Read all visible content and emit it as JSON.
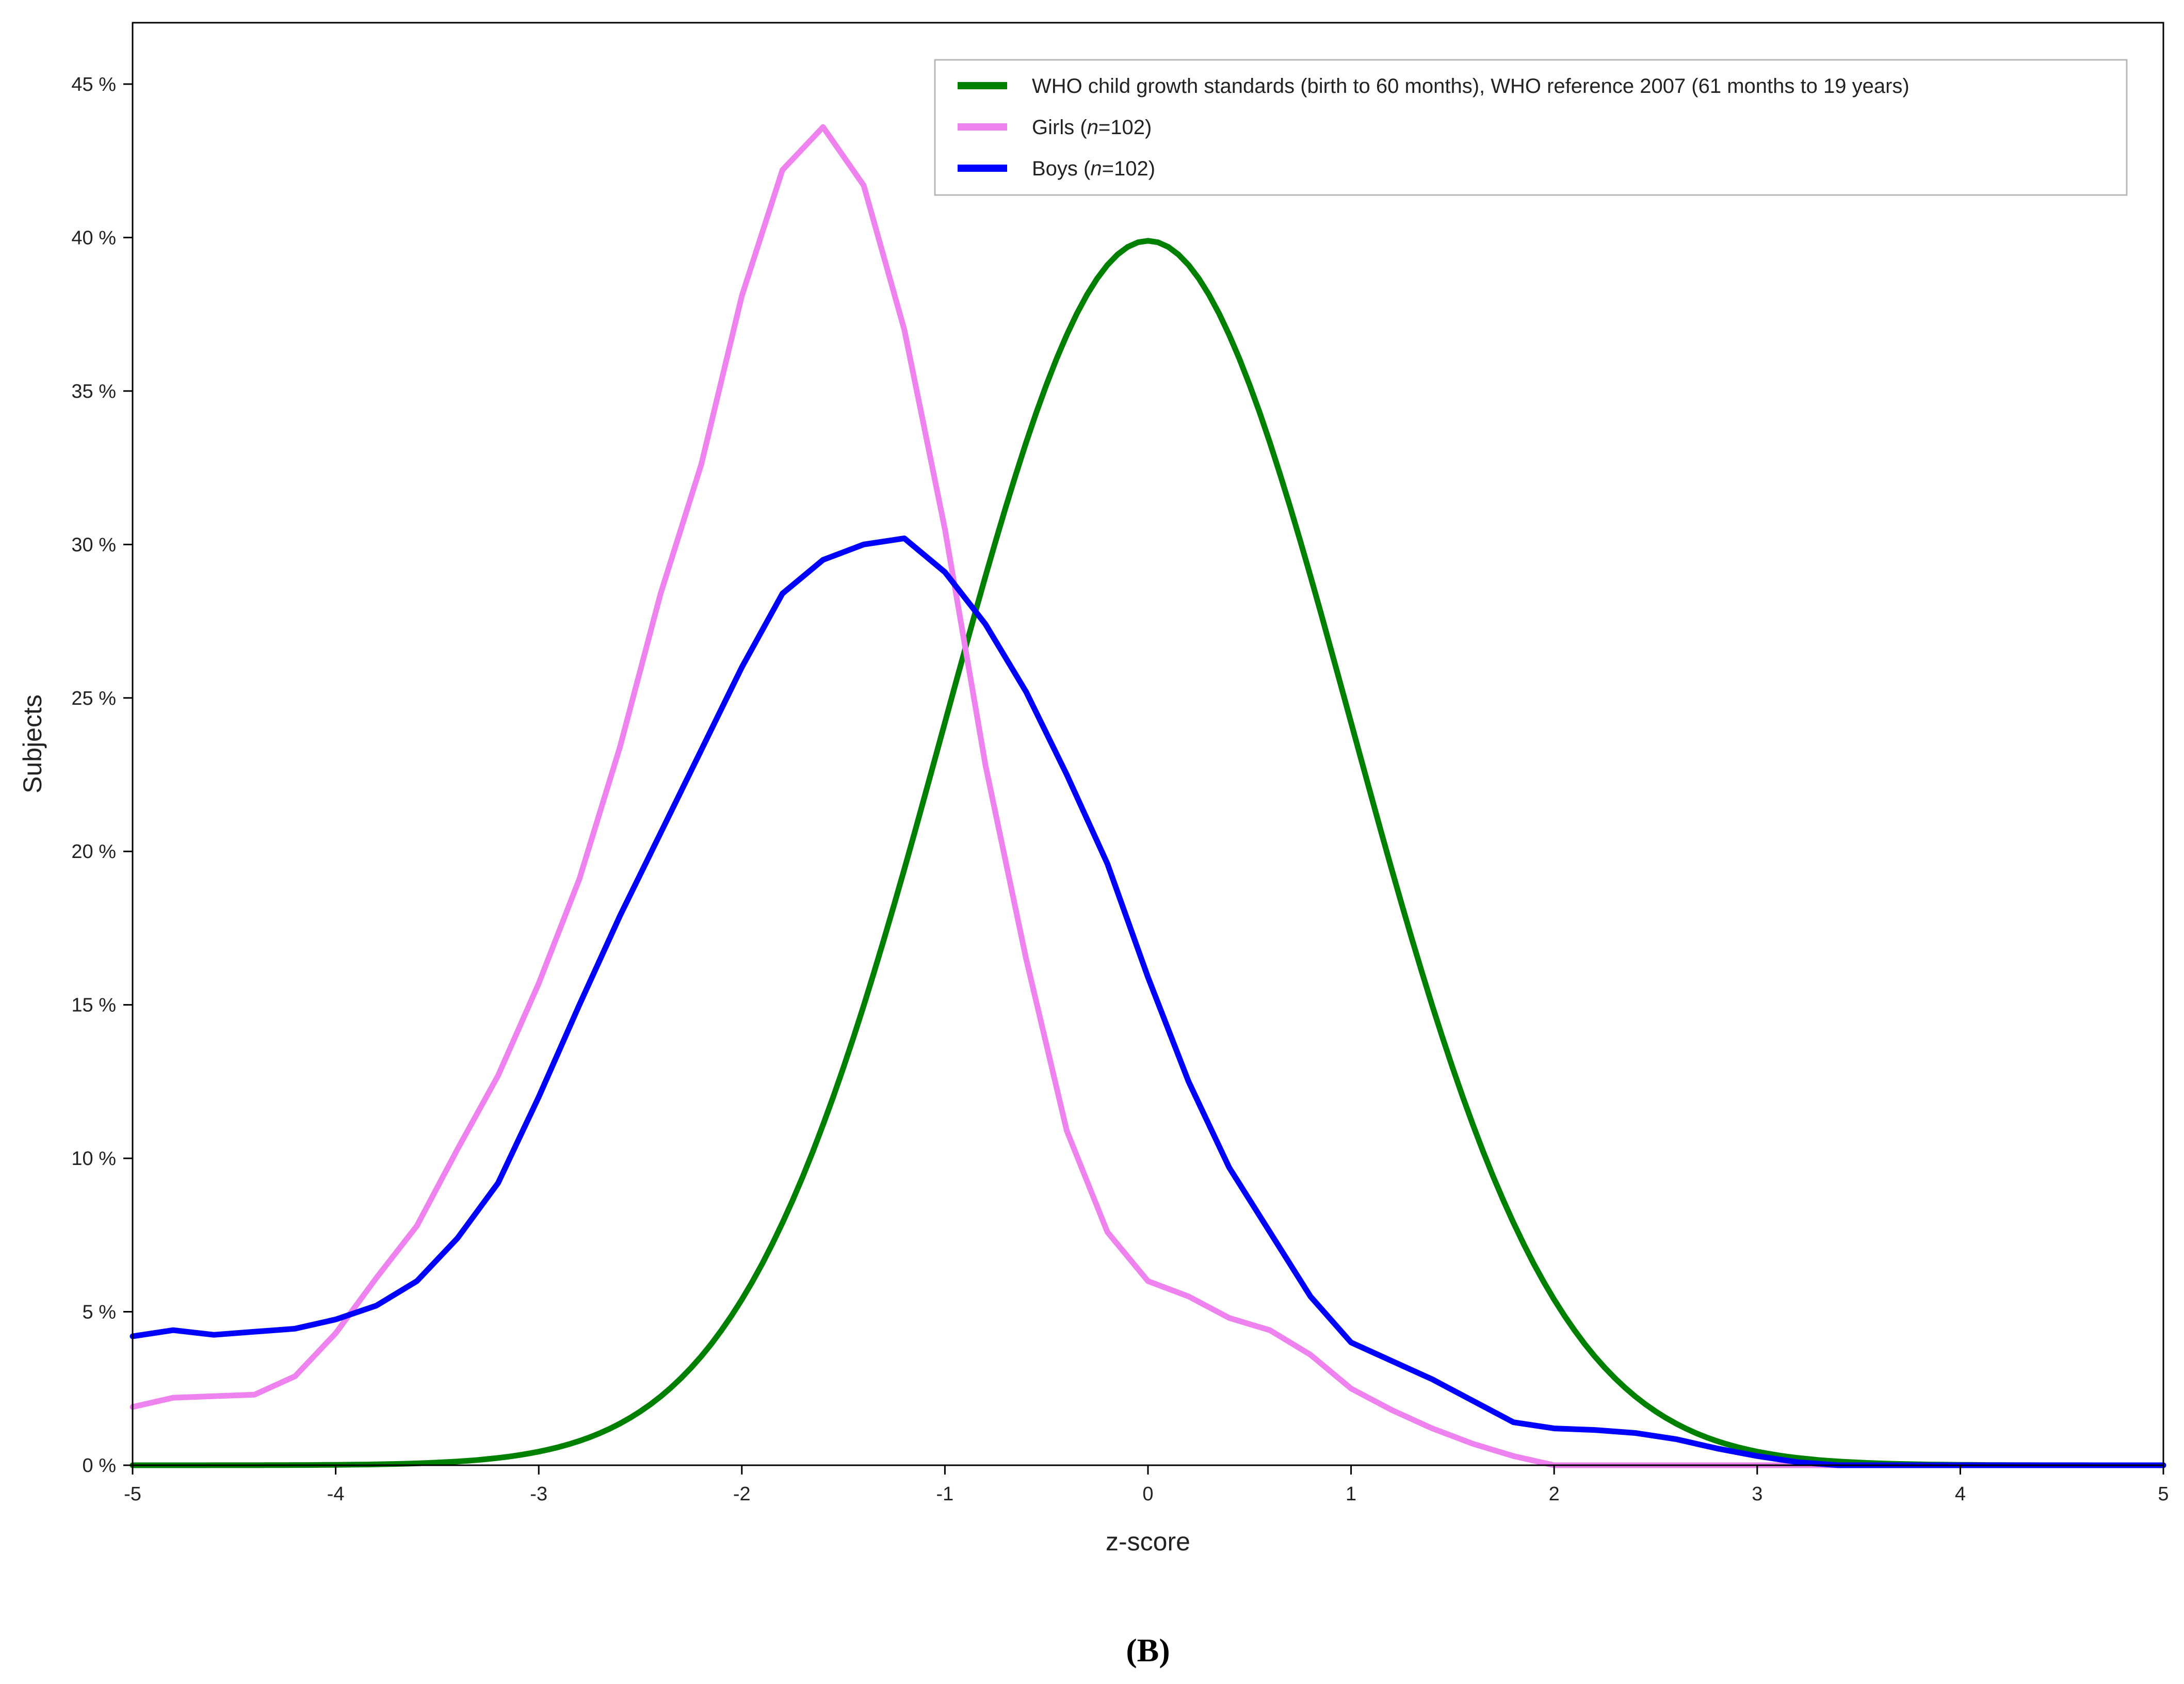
{
  "chart_data": {
    "type": "line",
    "title": "",
    "xlabel": "z-score",
    "ylabel": "Subjects",
    "xlim": [
      -5,
      5
    ],
    "ylim": [
      0,
      47
    ],
    "xticks": [
      -5,
      -4,
      -3,
      -2,
      -1,
      0,
      1,
      2,
      3,
      4,
      5
    ],
    "xtick_labels": [
      "-5",
      "-4",
      "-3",
      "-2",
      "-1",
      "0",
      "1",
      "2",
      "3",
      "4",
      "5"
    ],
    "yticks": [
      0,
      5,
      10,
      15,
      20,
      25,
      30,
      35,
      40,
      45
    ],
    "ytick_labels": [
      "0 %",
      "5 %",
      "10 %",
      "15 %",
      "20 %",
      "25 %",
      "30 %",
      "35 %",
      "40 %",
      "45 %"
    ],
    "grid": false,
    "legend_position": "top-right",
    "caption": "(B)",
    "series": [
      {
        "name": "WHO child growth standards (birth to 60 months), WHO reference 2007 (61 months to 19 years)",
        "color": "#008000",
        "curve": "standard-normal-density",
        "x": [],
        "y": []
      },
      {
        "name": "Girls (n=102)",
        "legend_prefix": "Girls (",
        "legend_italic": "n",
        "legend_suffix": "=102)",
        "color": "#ee82ee",
        "x": [
          -5,
          -4.8,
          -4.6,
          -4.4,
          -4.2,
          -4,
          -3.8,
          -3.6,
          -3.4,
          -3.2,
          -3,
          -2.8,
          -2.6,
          -2.4,
          -2.2,
          -2,
          -1.8,
          -1.6,
          -1.4,
          -1.2,
          -1,
          -0.8,
          -0.6,
          -0.4,
          -0.2,
          0,
          0.2,
          0.4,
          0.6,
          0.8,
          1,
          1.2,
          1.4,
          1.6,
          1.8,
          2,
          2.5,
          3,
          4,
          5
        ],
        "y": [
          1.9,
          2.2,
          2.25,
          2.3,
          2.9,
          4.3,
          6.1,
          7.8,
          10.3,
          12.7,
          15.7,
          19.1,
          23.4,
          28.4,
          32.6,
          38.1,
          42.2,
          43.6,
          41.7,
          37.0,
          30.5,
          22.8,
          16.5,
          10.9,
          7.6,
          6.0,
          5.5,
          4.8,
          4.4,
          3.6,
          2.5,
          1.8,
          1.2,
          0.7,
          0.3,
          0.0,
          0.0,
          0.0,
          0.0,
          0.0
        ]
      },
      {
        "name": "Boys (n=102)",
        "legend_prefix": "Boys (",
        "legend_italic": "n",
        "legend_suffix": "=102)",
        "color": "#0000ff",
        "x": [
          -5,
          -4.8,
          -4.6,
          -4.4,
          -4.2,
          -4,
          -3.8,
          -3.6,
          -3.4,
          -3.2,
          -3,
          -2.8,
          -2.6,
          -2.4,
          -2.2,
          -2,
          -1.8,
          -1.6,
          -1.4,
          -1.2,
          -1,
          -0.8,
          -0.6,
          -0.4,
          -0.2,
          0,
          0.2,
          0.4,
          0.6,
          0.8,
          1,
          1.2,
          1.4,
          1.6,
          1.8,
          2,
          2.2,
          2.4,
          2.6,
          2.8,
          3,
          3.2,
          3.4,
          4,
          5
        ],
        "y": [
          4.2,
          4.4,
          4.25,
          4.35,
          4.45,
          4.75,
          5.2,
          6.0,
          7.4,
          9.2,
          12.0,
          15.0,
          17.9,
          20.6,
          23.3,
          26.0,
          28.4,
          29.5,
          30.0,
          30.2,
          29.1,
          27.4,
          25.2,
          22.5,
          19.6,
          15.9,
          12.5,
          9.7,
          7.6,
          5.5,
          4.0,
          3.4,
          2.8,
          2.1,
          1.4,
          1.2,
          1.15,
          1.05,
          0.85,
          0.55,
          0.3,
          0.1,
          0.0,
          0.0,
          0.0
        ]
      }
    ]
  }
}
